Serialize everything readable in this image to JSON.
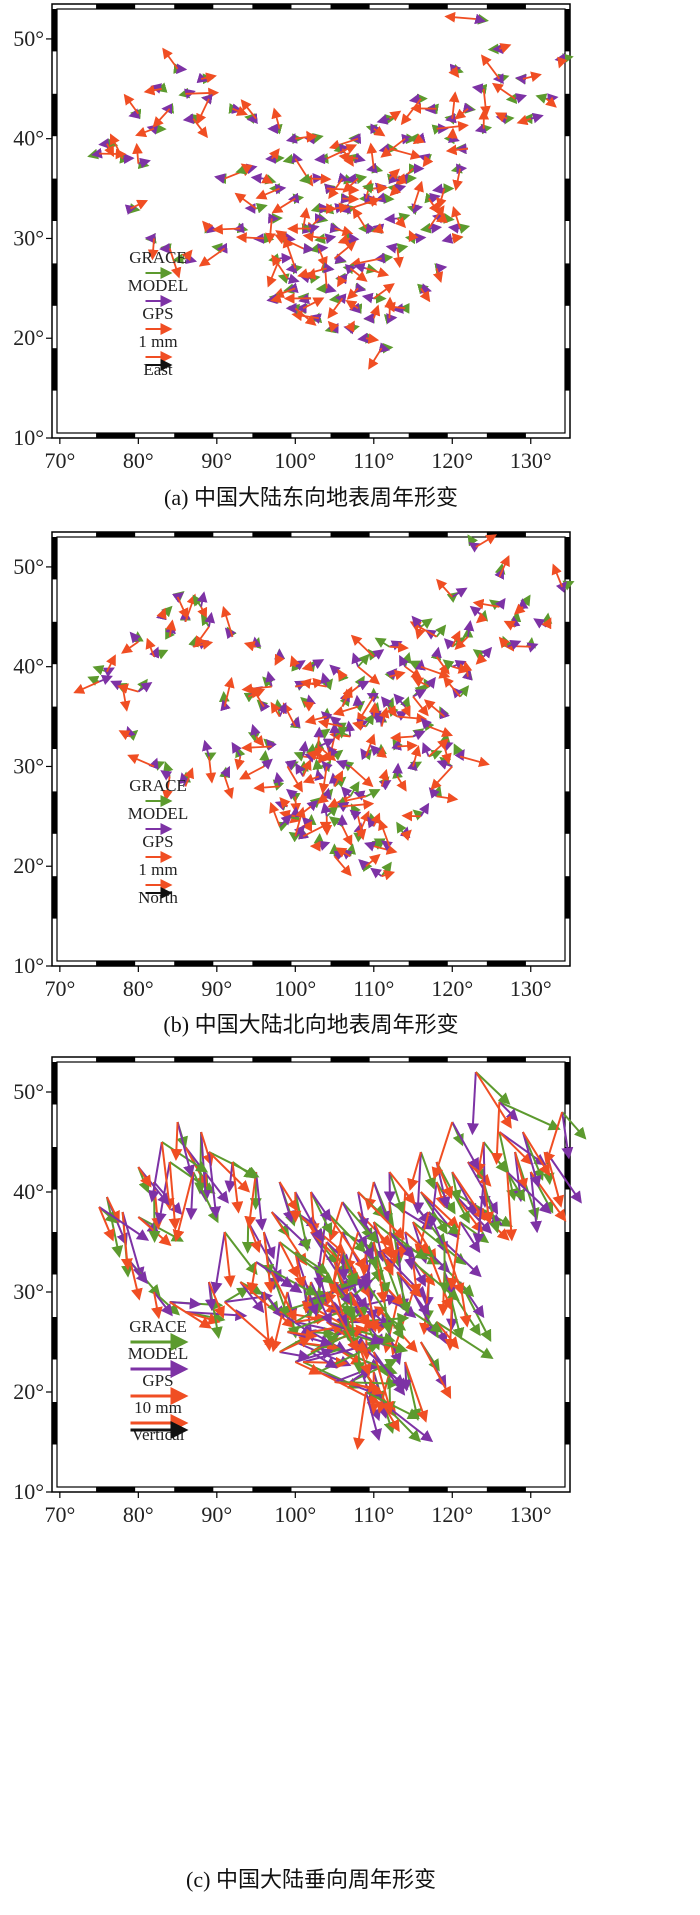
{
  "colors": {
    "grace": "#5c9a2e",
    "model": "#7d32a5",
    "gps": "#f04e23",
    "scale": "#111111",
    "frame": "#000000"
  },
  "chart_data": [
    {
      "type": "vector-field",
      "caption": "(a) 中国大陆东向地表周年形变",
      "x_ticks": [
        "70°",
        "80°",
        "90°",
        "100°",
        "110°",
        "120°",
        "130°"
      ],
      "x_tick_values": [
        70,
        80,
        90,
        100,
        110,
        120,
        130
      ],
      "y_ticks": [
        "10°",
        "20°",
        "30°",
        "40°",
        "50°"
      ],
      "y_tick_values": [
        10,
        20,
        30,
        40,
        50
      ],
      "xlim": [
        69,
        135
      ],
      "ylim": [
        10,
        53.5
      ],
      "legend": {
        "labels": [
          "GRACE",
          "MODEL",
          "GPS",
          "1 mm",
          "East"
        ],
        "scale_mm": 1
      },
      "component": "East",
      "arrow_scale": 1.0,
      "series": [
        {
          "name": "GRACE",
          "color_key": "grace"
        },
        {
          "name": "MODEL",
          "color_key": "model"
        },
        {
          "name": "GPS",
          "color_key": "gps"
        }
      ]
    },
    {
      "type": "vector-field",
      "caption": "(b) 中国大陆北向地表周年形变",
      "x_ticks": [
        "70°",
        "80°",
        "90°",
        "100°",
        "110°",
        "120°",
        "130°"
      ],
      "x_tick_values": [
        70,
        80,
        90,
        100,
        110,
        120,
        130
      ],
      "y_ticks": [
        "10°",
        "20°",
        "30°",
        "40°",
        "50°"
      ],
      "y_tick_values": [
        10,
        20,
        30,
        40,
        50
      ],
      "xlim": [
        69,
        135
      ],
      "ylim": [
        10,
        53.5
      ],
      "legend": {
        "labels": [
          "GRACE",
          "MODEL",
          "GPS",
          "1 mm",
          "North"
        ],
        "scale_mm": 1
      },
      "component": "North",
      "arrow_scale": 1.0,
      "series": [
        {
          "name": "GRACE",
          "color_key": "grace"
        },
        {
          "name": "MODEL",
          "color_key": "model"
        },
        {
          "name": "GPS",
          "color_key": "gps"
        }
      ]
    },
    {
      "type": "vector-field",
      "caption": "(c) 中国大陆垂向周年形变",
      "x_ticks": [
        "70°",
        "80°",
        "90°",
        "100°",
        "110°",
        "120°",
        "130°"
      ],
      "x_tick_values": [
        70,
        80,
        90,
        100,
        110,
        120,
        130
      ],
      "y_ticks": [
        "10°",
        "20°",
        "30°",
        "40°",
        "50°"
      ],
      "y_tick_values": [
        10,
        20,
        30,
        40,
        50
      ],
      "xlim": [
        69,
        135
      ],
      "ylim": [
        10,
        53.5
      ],
      "legend": {
        "labels": [
          "GRACE",
          "MODEL",
          "GPS",
          "10 mm",
          "Vertical"
        ],
        "scale_mm": 10
      },
      "component": "Vertical",
      "arrow_scale": 1.6,
      "series": [
        {
          "name": "GRACE",
          "color_key": "grace"
        },
        {
          "name": "MODEL",
          "color_key": "model"
        },
        {
          "name": "GPS",
          "color_key": "gps"
        }
      ]
    }
  ],
  "stations": [
    [
      76,
      39.5
    ],
    [
      78,
      38
    ],
    [
      80,
      37.5
    ],
    [
      82,
      41
    ],
    [
      84,
      43
    ],
    [
      86,
      44.5
    ],
    [
      88,
      46
    ],
    [
      87,
      42
    ],
    [
      83,
      45
    ],
    [
      85,
      47
    ],
    [
      80,
      42.5
    ],
    [
      75,
      38.5
    ],
    [
      79,
      33
    ],
    [
      82,
      30
    ],
    [
      84,
      29
    ],
    [
      86,
      28
    ],
    [
      89,
      31
    ],
    [
      91,
      29
    ],
    [
      93,
      31
    ],
    [
      96,
      30
    ],
    [
      91,
      36
    ],
    [
      94,
      37
    ],
    [
      97,
      38
    ],
    [
      98,
      41
    ],
    [
      95,
      42
    ],
    [
      89,
      44
    ],
    [
      92,
      43
    ],
    [
      100,
      38
    ],
    [
      102,
      36
    ],
    [
      104,
      35
    ],
    [
      106,
      36
    ],
    [
      108,
      38
    ],
    [
      110,
      37
    ],
    [
      112,
      39
    ],
    [
      114,
      40
    ],
    [
      116,
      40
    ],
    [
      118,
      41
    ],
    [
      120,
      40
    ],
    [
      117,
      38
    ],
    [
      115,
      37
    ],
    [
      113,
      35
    ],
    [
      111,
      34
    ],
    [
      109,
      34
    ],
    [
      107,
      33
    ],
    [
      105,
      33
    ],
    [
      103,
      32
    ],
    [
      101,
      31
    ],
    [
      99,
      30
    ],
    [
      98,
      28
    ],
    [
      100,
      27
    ],
    [
      102,
      26
    ],
    [
      104,
      25
    ],
    [
      106,
      24
    ],
    [
      108,
      23
    ],
    [
      110,
      22
    ],
    [
      112,
      22
    ],
    [
      114,
      23
    ],
    [
      116,
      25
    ],
    [
      118,
      27
    ],
    [
      120,
      30
    ],
    [
      121,
      31
    ],
    [
      119,
      32
    ],
    [
      117,
      31
    ],
    [
      115,
      30
    ],
    [
      113,
      29
    ],
    [
      111,
      28
    ],
    [
      109,
      27
    ],
    [
      107,
      27
    ],
    [
      105,
      28
    ],
    [
      103,
      29
    ],
    [
      101,
      29
    ],
    [
      100,
      25
    ],
    [
      101,
      23
    ],
    [
      103,
      22
    ],
    [
      105,
      21
    ],
    [
      107,
      21
    ],
    [
      109,
      20
    ],
    [
      111,
      19
    ],
    [
      110,
      24
    ],
    [
      108,
      25
    ],
    [
      106,
      26
    ],
    [
      104,
      27
    ],
    [
      102,
      24
    ],
    [
      100,
      23
    ],
    [
      98,
      24
    ],
    [
      99,
      26
    ],
    [
      103,
      33
    ],
    [
      105,
      31
    ],
    [
      107,
      30
    ],
    [
      109,
      31
    ],
    [
      111,
      31
    ],
    [
      113,
      32
    ],
    [
      115,
      33
    ],
    [
      117,
      34
    ],
    [
      119,
      35
    ],
    [
      121,
      37
    ],
    [
      122,
      39
    ],
    [
      120,
      42
    ],
    [
      118,
      43
    ],
    [
      116,
      44
    ],
    [
      112,
      42
    ],
    [
      110,
      41
    ],
    [
      108,
      40
    ],
    [
      106,
      39
    ],
    [
      104,
      38
    ],
    [
      102,
      40
    ],
    [
      100,
      40
    ],
    [
      114,
      36
    ],
    [
      112,
      36
    ],
    [
      110,
      35
    ],
    [
      108,
      36
    ],
    [
      106,
      34
    ],
    [
      104,
      30
    ],
    [
      102,
      31
    ],
    [
      100,
      34
    ],
    [
      98,
      35
    ],
    [
      96,
      36
    ],
    [
      95,
      33
    ],
    [
      97,
      32
    ],
    [
      122,
      43
    ],
    [
      124,
      45
    ],
    [
      126,
      46
    ],
    [
      128,
      44
    ],
    [
      130,
      42
    ],
    [
      132,
      44
    ],
    [
      126,
      49
    ],
    [
      123,
      52
    ],
    [
      120,
      47
    ],
    [
      134,
      48
    ],
    [
      124,
      41
    ],
    [
      127,
      42
    ],
    [
      129,
      46
    ]
  ]
}
